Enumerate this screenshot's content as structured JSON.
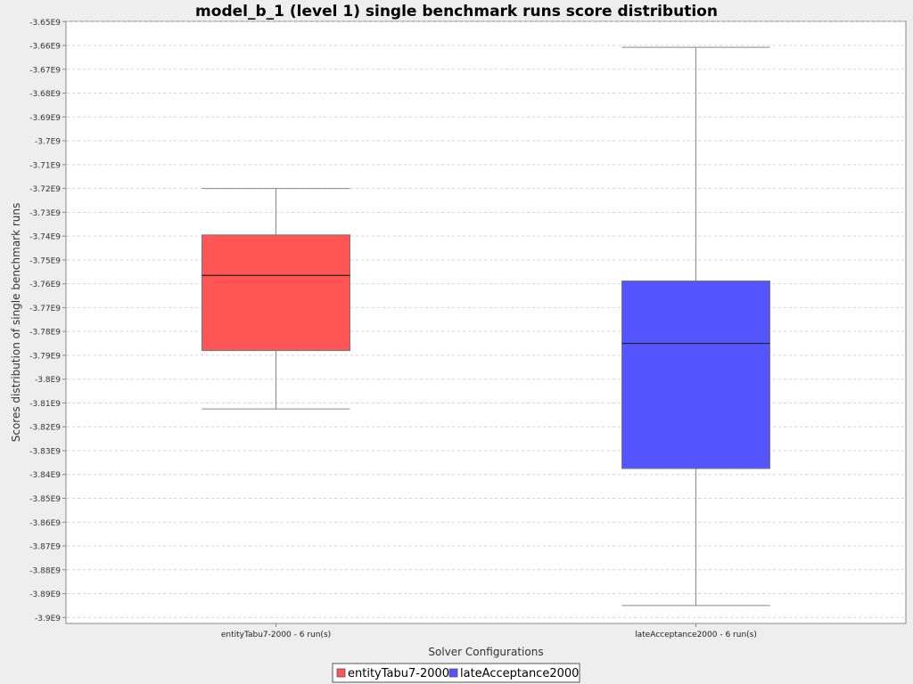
{
  "chart_data": {
    "type": "box",
    "title": "model_b_1 (level 1) single benchmark runs score distribution",
    "xlabel": "Solver Configurations",
    "ylabel": "Scores distribution of single benchmark runs",
    "ylim": [
      -3.9025,
      -3.6499
    ],
    "y_ticks": [
      -3.65,
      -3.66,
      -3.67,
      -3.68,
      -3.69,
      -3.7,
      -3.71,
      -3.72,
      -3.73,
      -3.74,
      -3.75,
      -3.76,
      -3.77,
      -3.78,
      -3.79,
      -3.8,
      -3.81,
      -3.82,
      -3.83,
      -3.84,
      -3.85,
      -3.86,
      -3.87,
      -3.88,
      -3.89,
      -3.9
    ],
    "y_tick_labels": [
      "-3.65E9",
      "-3.66E9",
      "-3.67E9",
      "-3.68E9",
      "-3.69E9",
      "-3.7E9",
      "-3.71E9",
      "-3.72E9",
      "-3.73E9",
      "-3.74E9",
      "-3.75E9",
      "-3.76E9",
      "-3.77E9",
      "-3.78E9",
      "-3.79E9",
      "-3.8E9",
      "-3.81E9",
      "-3.82E9",
      "-3.83E9",
      "-3.84E9",
      "-3.85E9",
      "-3.86E9",
      "-3.87E9",
      "-3.88E9",
      "-3.89E9",
      "-3.9E9"
    ],
    "grid": true,
    "legend_position": "bottom",
    "categories": [
      "entityTabu7-2000 - 6 run(s)",
      "lateAcceptance2000 - 6 run(s)"
    ],
    "series": [
      {
        "name": "entityTabu7-2000",
        "color": "#ff5555",
        "max": -3.72,
        "q3": -3.7395,
        "median": -3.7565,
        "q1": -3.788,
        "min": -3.8125
      },
      {
        "name": "lateAcceptance2000",
        "color": "#5555ff",
        "max": -3.6608,
        "q3": -3.7588,
        "median": -3.785,
        "q1": -3.8375,
        "min": -3.895
      }
    ]
  }
}
